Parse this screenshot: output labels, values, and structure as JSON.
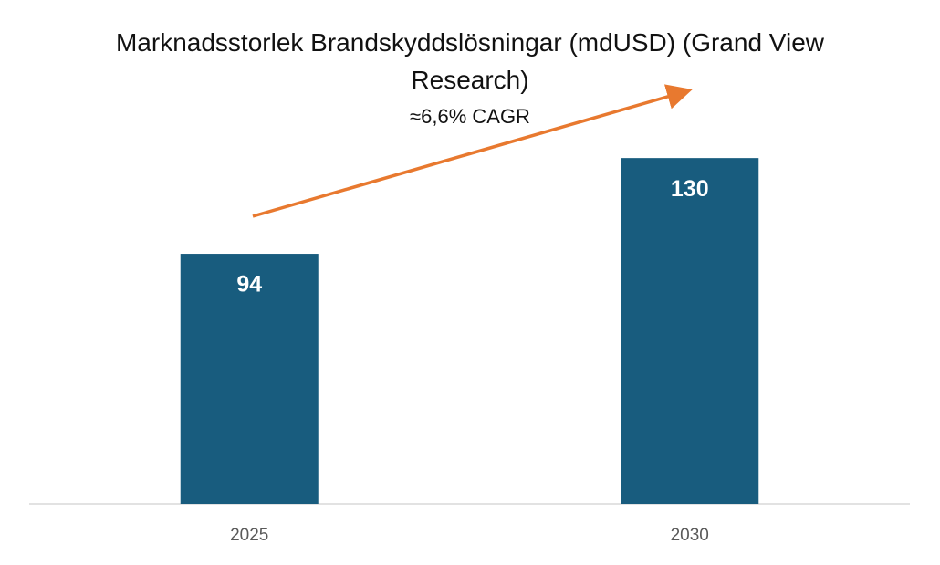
{
  "chart_data": {
    "type": "bar",
    "title": "Marknadsstorlek Brandskyddslösningar (mdUSD) (Grand View Research)",
    "annotation": "≈6,6% CAGR",
    "categories": [
      "2025",
      "2030"
    ],
    "values": [
      94,
      130
    ],
    "color": "#185c7e",
    "ylim": [
      0,
      140
    ]
  }
}
